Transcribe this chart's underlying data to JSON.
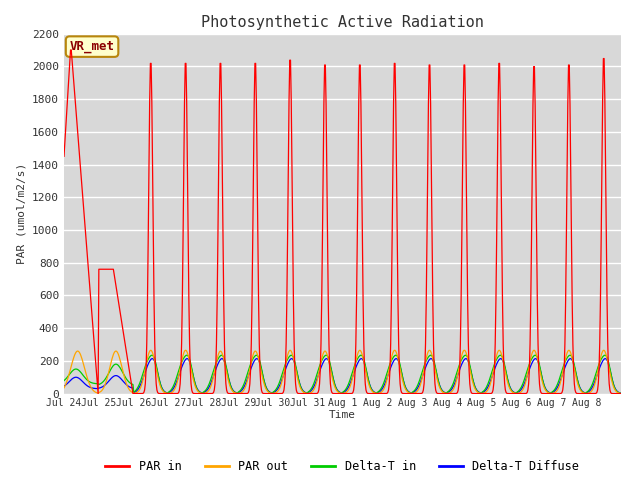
{
  "title": "Photosynthetic Active Radiation",
  "ylabel": "PAR (umol/m2/s)",
  "xlabel": "Time",
  "annotation": "VR_met",
  "ylim": [
    0,
    2200
  ],
  "fig_bg_color": "#ffffff",
  "plot_bg_color": "#d8d8d8",
  "grid_color": "#ffffff",
  "num_days": 16,
  "x_tick_labels": [
    "Jul 24",
    "Jul 25",
    "Jul 26",
    "Jul 27",
    "Jul 28",
    "Jul 29",
    "Jul 30",
    "Jul 31",
    "Aug 1",
    "Aug 2",
    "Aug 3",
    "Aug 4",
    "Aug 5",
    "Aug 6",
    "Aug 7",
    "Aug 8"
  ],
  "yticks": [
    0,
    200,
    400,
    600,
    800,
    1000,
    1200,
    1400,
    1600,
    1800,
    2000,
    2200
  ],
  "series": {
    "PAR_in": {
      "color": "#ff0000",
      "label": "PAR in"
    },
    "PAR_out": {
      "color": "#ffa500",
      "label": "PAR out"
    },
    "Delta_T_in": {
      "color": "#00cc00",
      "label": "Delta-T in"
    },
    "Delta_T_Diffuse": {
      "color": "#0000ff",
      "label": "Delta-T Diffuse"
    }
  }
}
